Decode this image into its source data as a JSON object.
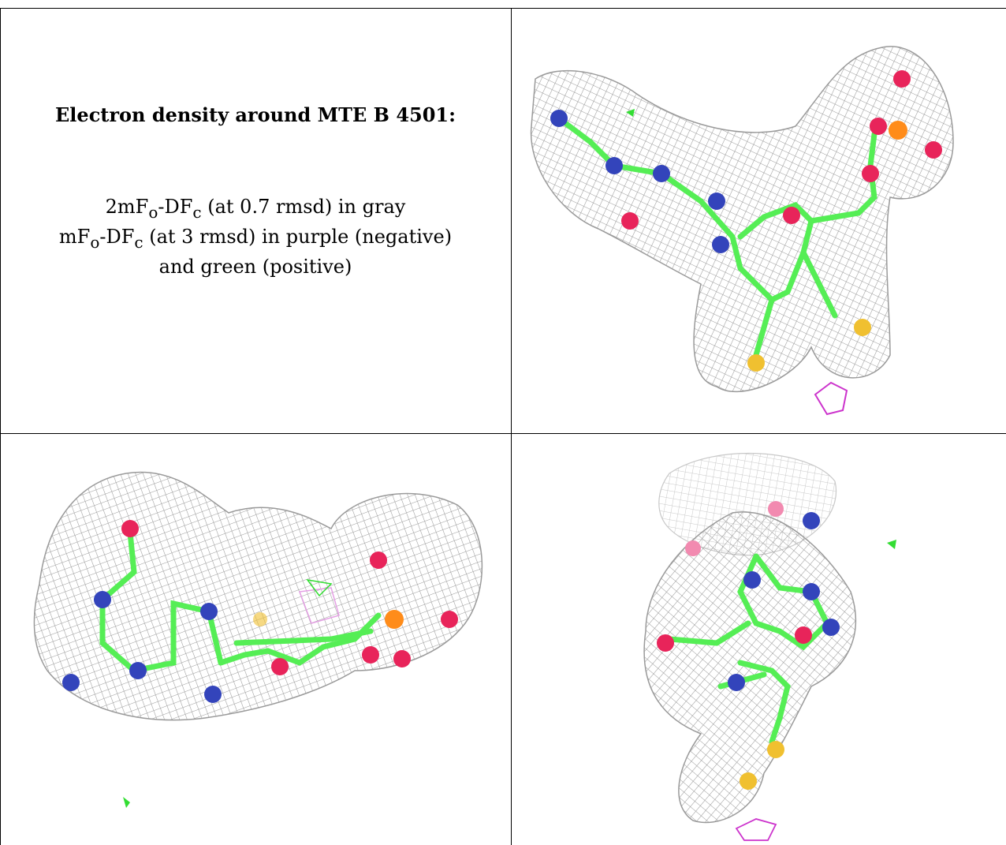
{
  "caption": {
    "heading": "Electron density around MTE B 4501:",
    "line1_prefix": "2mF",
    "line1_sub1": "o",
    "line1_mid": "-DF",
    "line1_sub2": "c",
    "line1_suffix": " (at 0.7 rmsd) in gray",
    "line2_prefix": "mF",
    "line2_sub1": "o",
    "line2_mid": "-DF",
    "line2_sub2": "c",
    "line2_suffix": " (at 3 rmsd) in purple (negative)",
    "line3": "and green (positive)"
  },
  "colors": {
    "mesh_gray": "#9a9a9a",
    "mesh_light": "#c8c8c8",
    "carbon_green": "#55ee55",
    "nitrogen_blue": "#3344bb",
    "oxygen_red": "#e8245a",
    "phosphorus_orange": "#ff8c1a",
    "sulfur_yellow": "#f0c030",
    "negative_purple": "#cc33cc",
    "positive_green": "#33dd33"
  },
  "views": [
    "top-right-view",
    "bottom-left-view",
    "bottom-right-view"
  ]
}
